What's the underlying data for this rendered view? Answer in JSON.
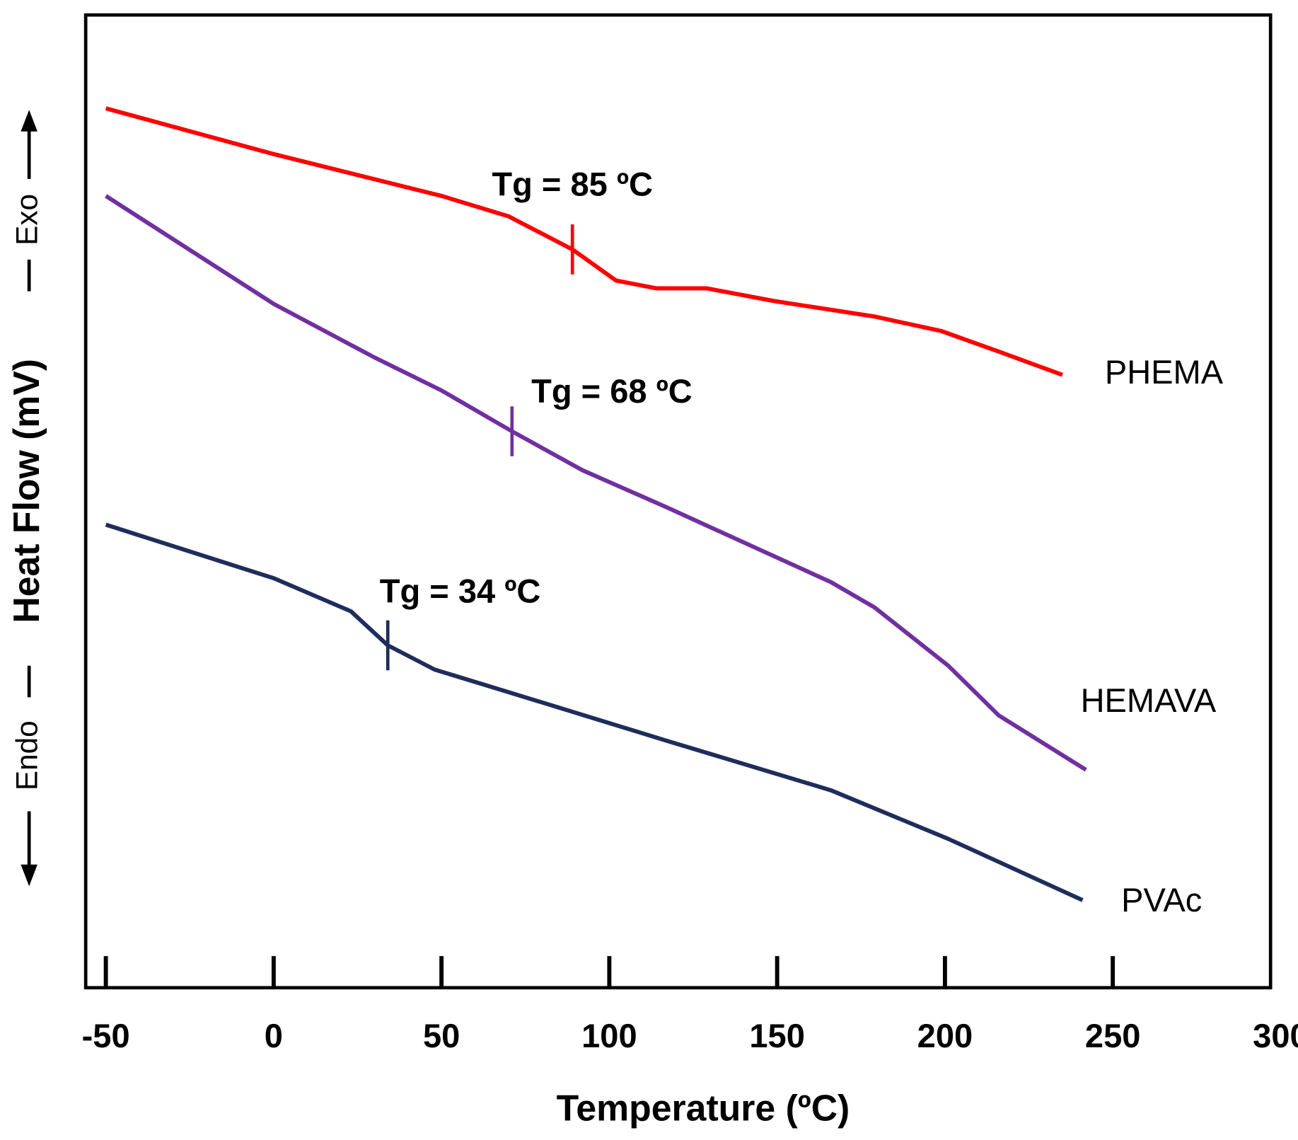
{
  "chart_data": {
    "type": "line",
    "xlabel": "Temperature (ºC)",
    "ylabel": "Heat Flow (mV)",
    "exo_label": "Exo",
    "endo_label": "Endo",
    "xlim": [
      -56,
      297
    ],
    "xticks": [
      -50,
      0,
      50,
      100,
      150,
      200,
      250,
      300
    ],
    "ylim": [
      0,
      100
    ],
    "yticks": [],
    "series": [
      {
        "name": "PHEMA",
        "color": "#ff0000",
        "x": [
          -50,
          0,
          50,
          70,
          89,
          102,
          114,
          129,
          149,
          179,
          199,
          216,
          235
        ],
        "values": [
          90.4,
          85.7,
          81.4,
          79.3,
          75.9,
          72.7,
          71.9,
          71.9,
          70.6,
          69.0,
          67.5,
          65.4,
          63.0
        ],
        "marker_x": 89,
        "annotation": "Tg = 85 ºC"
      },
      {
        "name": "HEMAVA",
        "color": "#7030a0",
        "x": [
          -50,
          0,
          30,
          50,
          71,
          92,
          117,
          166,
          179,
          201,
          216,
          242
        ],
        "values": [
          81.4,
          70.3,
          64.8,
          61.4,
          57.2,
          53.2,
          49.4,
          41.7,
          39.1,
          33.1,
          28.0,
          22.4
        ],
        "marker_x": 71,
        "annotation": "Tg = 68 ºC"
      },
      {
        "name": "PVAc",
        "color": "#1f2d5c",
        "x": [
          -50,
          0,
          23,
          34,
          48,
          67,
          117,
          166,
          201,
          241
        ],
        "values": [
          47.6,
          42.1,
          38.7,
          35.2,
          32.7,
          30.7,
          25.4,
          20.3,
          15.3,
          9.0
        ],
        "marker_x": 34,
        "annotation": "Tg = 34 ºC"
      }
    ]
  }
}
